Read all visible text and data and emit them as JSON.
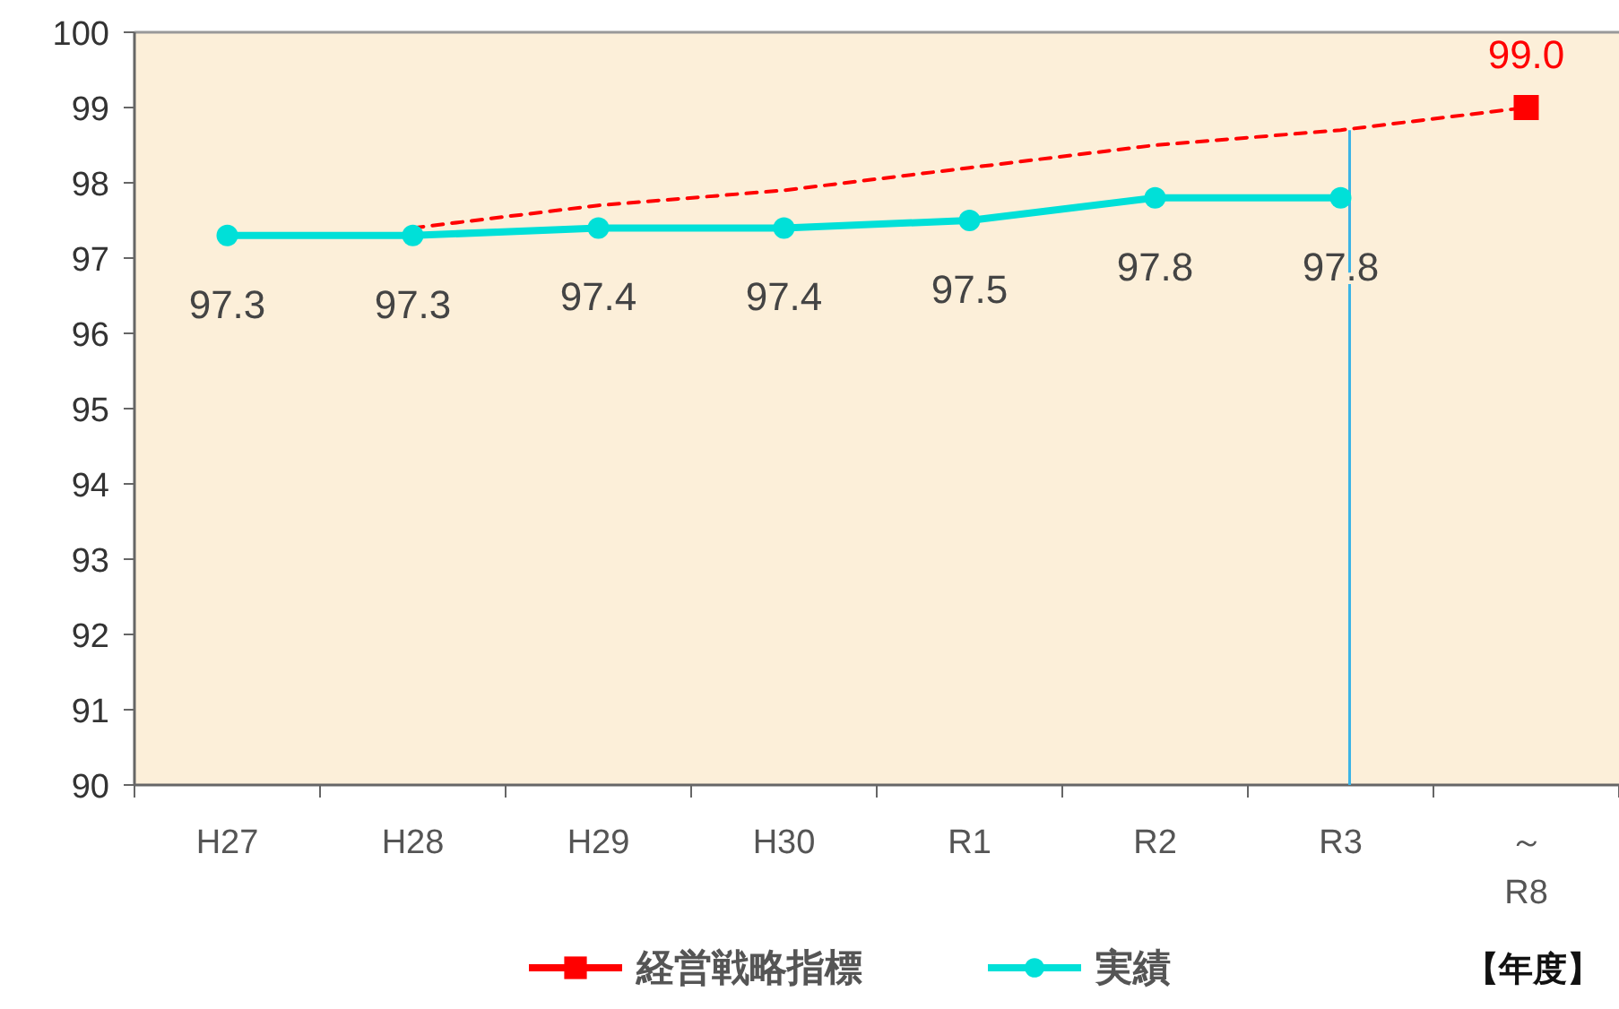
{
  "chart_data": {
    "type": "line",
    "xlabel": "【年度】",
    "categories": [
      "H27",
      "H28",
      "H29",
      "H30",
      "R1",
      "R2",
      "R3",
      "～ R8"
    ],
    "series": [
      {
        "name": "経営戦略指標",
        "color": "#ff0000",
        "marker": "square",
        "line_style": "dashed",
        "values": [
          null,
          null,
          null,
          null,
          null,
          null,
          null,
          99.0
        ],
        "value_labels": [
          null,
          null,
          null,
          null,
          null,
          null,
          null,
          "99.0"
        ]
      },
      {
        "color": "#ff0000",
        "marker": "none",
        "line_style": "dashed",
        "values": [
          null,
          97.4,
          97.7,
          97.9,
          98.2,
          98.5,
          98.7,
          99.0
        ]
      },
      {
        "name": "実績",
        "color": "#00e0d8",
        "marker": "circle",
        "line_style": "solid",
        "values": [
          97.3,
          97.3,
          97.4,
          97.4,
          97.5,
          97.8,
          97.8,
          null
        ],
        "value_labels": [
          "97.3",
          "97.3",
          "97.4",
          "97.4",
          "97.5",
          "97.8",
          "97.8",
          null
        ]
      }
    ],
    "ylim": [
      90,
      100
    ],
    "yticks": [
      90,
      91,
      92,
      93,
      94,
      95,
      96,
      97,
      98,
      99,
      100
    ],
    "grid": false,
    "legend": "bottom",
    "ref_lines": [
      {
        "axis": "x",
        "value": "R3",
        "color": "#3cb4e6"
      }
    ]
  }
}
